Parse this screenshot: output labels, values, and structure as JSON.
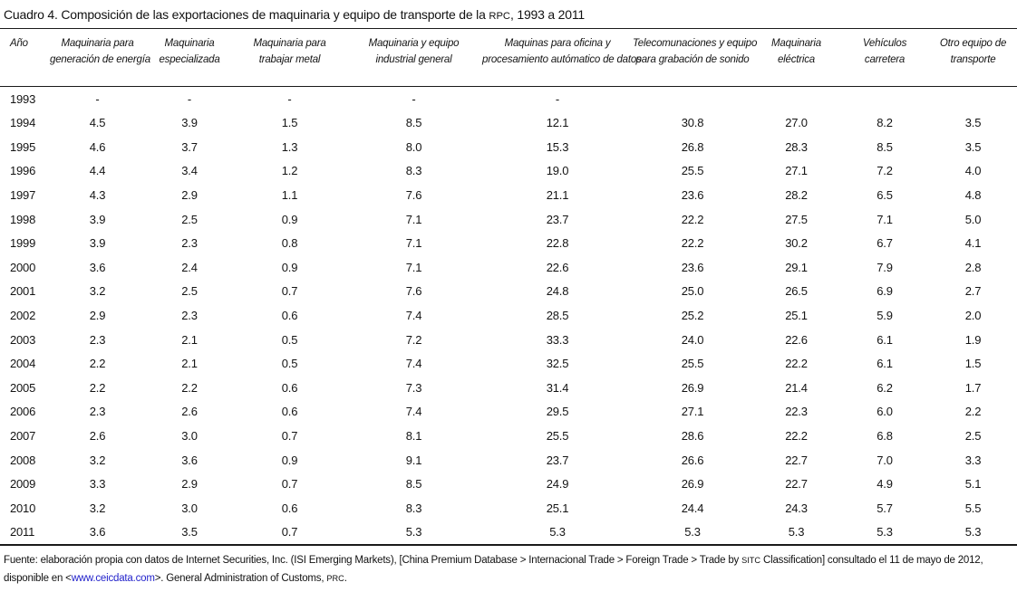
{
  "title": {
    "part1": "Cuadro 4. Composición de las exportaciones de maquinaria y equipo de transporte de la ",
    "rpc": "RPC",
    "part2": ", 1993 a 2011"
  },
  "table": {
    "columns": [
      {
        "id": "ano",
        "line1": "Año",
        "line2": ""
      },
      {
        "id": "maquinaria-generacion-energia",
        "line1": "Maquinaria para",
        "line2": "generación de energía"
      },
      {
        "id": "maquinaria-especializada",
        "line1": "Maquinaria",
        "line2": "especializada"
      },
      {
        "id": "maquinaria-trabajar-metal",
        "line1": "Maquinaria para",
        "line2": "trabajar metal"
      },
      {
        "id": "maquinaria-equipo-industrial",
        "line1": "Maquinaria y equipo",
        "line2": "industrial general"
      },
      {
        "id": "maquinas-oficina-datos",
        "line1": "Maquinas para oficina y",
        "line2": "procesamiento autómatico de datos"
      },
      {
        "id": "telecomunicaciones-sonido",
        "line1": "Telecomunaciones y equipo",
        "line2": "para grabación de sonido"
      },
      {
        "id": "maquinaria-electrica",
        "line1": "Maquinaria",
        "line2": "eléctrica"
      },
      {
        "id": "vehiculos-carretera",
        "line1": "Vehículos",
        "line2": "carretera"
      },
      {
        "id": "otro-equipo-transporte",
        "line1": "Otro equipo de",
        "line2": "transporte"
      }
    ],
    "rows": [
      {
        "year": "1993",
        "values": [
          "-",
          "-",
          "-",
          "-",
          "-",
          "",
          "",
          "",
          ""
        ]
      },
      {
        "year": "1994",
        "values": [
          "4.5",
          "3.9",
          "1.5",
          "8.5",
          "12.1",
          "30.8",
          "27.0",
          "8.2",
          "3.5"
        ]
      },
      {
        "year": "1995",
        "values": [
          "4.6",
          "3.7",
          "1.3",
          "8.0",
          "15.3",
          "26.8",
          "28.3",
          "8.5",
          "3.5"
        ]
      },
      {
        "year": "1996",
        "values": [
          "4.4",
          "3.4",
          "1.2",
          "8.3",
          "19.0",
          "25.5",
          "27.1",
          "7.2",
          "4.0"
        ]
      },
      {
        "year": "1997",
        "values": [
          "4.3",
          "2.9",
          "1.1",
          "7.6",
          "21.1",
          "23.6",
          "28.2",
          "6.5",
          "4.8"
        ]
      },
      {
        "year": "1998",
        "values": [
          "3.9",
          "2.5",
          "0.9",
          "7.1",
          "23.7",
          "22.2",
          "27.5",
          "7.1",
          "5.0"
        ]
      },
      {
        "year": "1999",
        "values": [
          "3.9",
          "2.3",
          "0.8",
          "7.1",
          "22.8",
          "22.2",
          "30.2",
          "6.7",
          "4.1"
        ]
      },
      {
        "year": "2000",
        "values": [
          "3.6",
          "2.4",
          "0.9",
          "7.1",
          "22.6",
          "23.6",
          "29.1",
          "7.9",
          "2.8"
        ]
      },
      {
        "year": "2001",
        "values": [
          "3.2",
          "2.5",
          "0.7",
          "7.6",
          "24.8",
          "25.0",
          "26.5",
          "6.9",
          "2.7"
        ]
      },
      {
        "year": "2002",
        "values": [
          "2.9",
          "2.3",
          "0.6",
          "7.4",
          "28.5",
          "25.2",
          "25.1",
          "5.9",
          "2.0"
        ]
      },
      {
        "year": "2003",
        "values": [
          "2.3",
          "2.1",
          "0.5",
          "7.2",
          "33.3",
          "24.0",
          "22.6",
          "6.1",
          "1.9"
        ]
      },
      {
        "year": "2004",
        "values": [
          "2.2",
          "2.1",
          "0.5",
          "7.4",
          "32.5",
          "25.5",
          "22.2",
          "6.1",
          "1.5"
        ]
      },
      {
        "year": "2005",
        "values": [
          "2.2",
          "2.2",
          "0.6",
          "7.3",
          "31.4",
          "26.9",
          "21.4",
          "6.2",
          "1.7"
        ]
      },
      {
        "year": "2006",
        "values": [
          "2.3",
          "2.6",
          "0.6",
          "7.4",
          "29.5",
          "27.1",
          "22.3",
          "6.0",
          "2.2"
        ]
      },
      {
        "year": "2007",
        "values": [
          "2.6",
          "3.0",
          "0.7",
          "8.1",
          "25.5",
          "28.6",
          "22.2",
          "6.8",
          "2.5"
        ]
      },
      {
        "year": "2008",
        "values": [
          "3.2",
          "3.6",
          "0.9",
          "9.1",
          "23.7",
          "26.6",
          "22.7",
          "7.0",
          "3.3"
        ]
      },
      {
        "year": "2009",
        "values": [
          "3.3",
          "2.9",
          "0.7",
          "8.5",
          "24.9",
          "26.9",
          "22.7",
          "4.9",
          "5.1"
        ]
      },
      {
        "year": "2010",
        "values": [
          "3.2",
          "3.0",
          "0.6",
          "8.3",
          "25.1",
          "24.4",
          "24.3",
          "5.7",
          "5.5"
        ]
      },
      {
        "year": "2011",
        "values": [
          "3.6",
          "3.5",
          "0.7",
          "5.3",
          "5.3",
          "5.3",
          "5.3",
          "5.3",
          "5.3"
        ]
      }
    ]
  },
  "footer": {
    "line1_part1": "Fuente: elaboración propia con datos de Internet Securities, Inc. (ISI Emerging Markets), [China Premium Database > Internacional Trade > Foreign Trade > Trade by ",
    "line1_sitc": "SITC",
    "line1_part2": " Classification] consultado el 11 de mayo de 2012,",
    "line2_part1": "disponible en <",
    "line2_link": "www.ceicdata.com",
    "line2_part2": ">. General Administration of Customs, ",
    "line2_prc": "PRC",
    "line2_part3": "."
  },
  "colors": {
    "text": "#141414",
    "link": "#2323cb",
    "rule": "#1a1a1a",
    "background": "#ffffff"
  }
}
